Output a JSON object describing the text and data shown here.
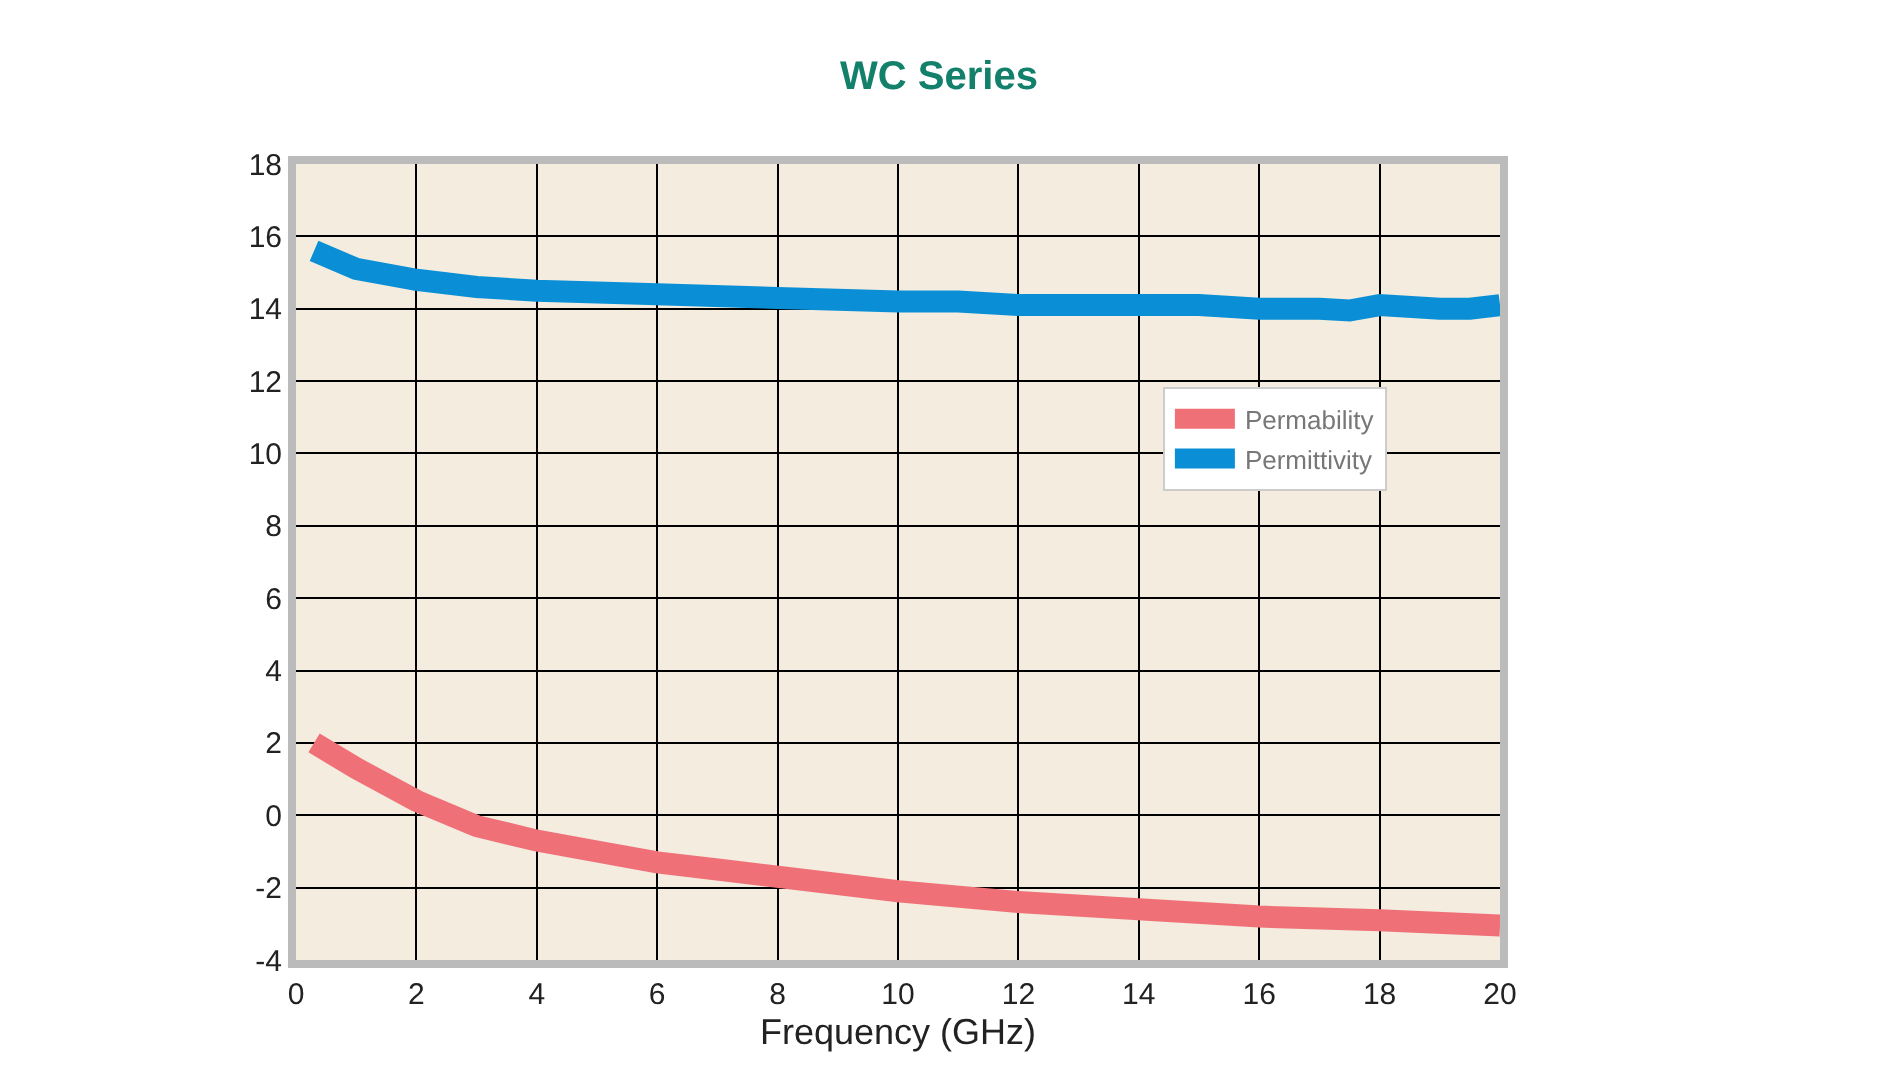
{
  "chart_data": {
    "type": "line",
    "title": "WC Series",
    "xlabel": "Frequency (GHz)",
    "xlim": [
      0,
      20
    ],
    "xticks": [
      0,
      2,
      4,
      6,
      8,
      10,
      12,
      14,
      16,
      18,
      20
    ],
    "ylim": [
      -4,
      18
    ],
    "yticks": [
      -4,
      -2,
      0,
      2,
      4,
      6,
      8,
      10,
      12,
      14,
      16,
      18
    ],
    "grid": true,
    "legend": "right",
    "marker": "none",
    "line_style": "solid",
    "series": [
      {
        "name": "Permability",
        "color": "#f07078",
        "x": [
          0.3,
          1,
          2,
          3,
          4,
          5,
          6,
          7,
          8,
          10,
          12,
          14,
          16,
          18,
          20
        ],
        "values": [
          2.0,
          1.3,
          0.4,
          -0.3,
          -0.7,
          -1.0,
          -1.3,
          -1.5,
          -1.7,
          -2.1,
          -2.4,
          -2.6,
          -2.8,
          -2.9,
          -3.05
        ]
      },
      {
        "name": "Permittivity",
        "color": "#0a8fd6",
        "x": [
          0.3,
          1,
          2,
          3,
          4,
          6,
          8,
          10,
          11,
          12,
          14,
          15,
          16,
          17,
          17.5,
          18,
          19,
          19.5,
          20
        ],
        "values": [
          15.6,
          15.1,
          14.8,
          14.6,
          14.5,
          14.4,
          14.3,
          14.2,
          14.2,
          14.1,
          14.1,
          14.1,
          14.0,
          14.0,
          13.95,
          14.1,
          14.0,
          14.0,
          14.1
        ]
      }
    ]
  }
}
